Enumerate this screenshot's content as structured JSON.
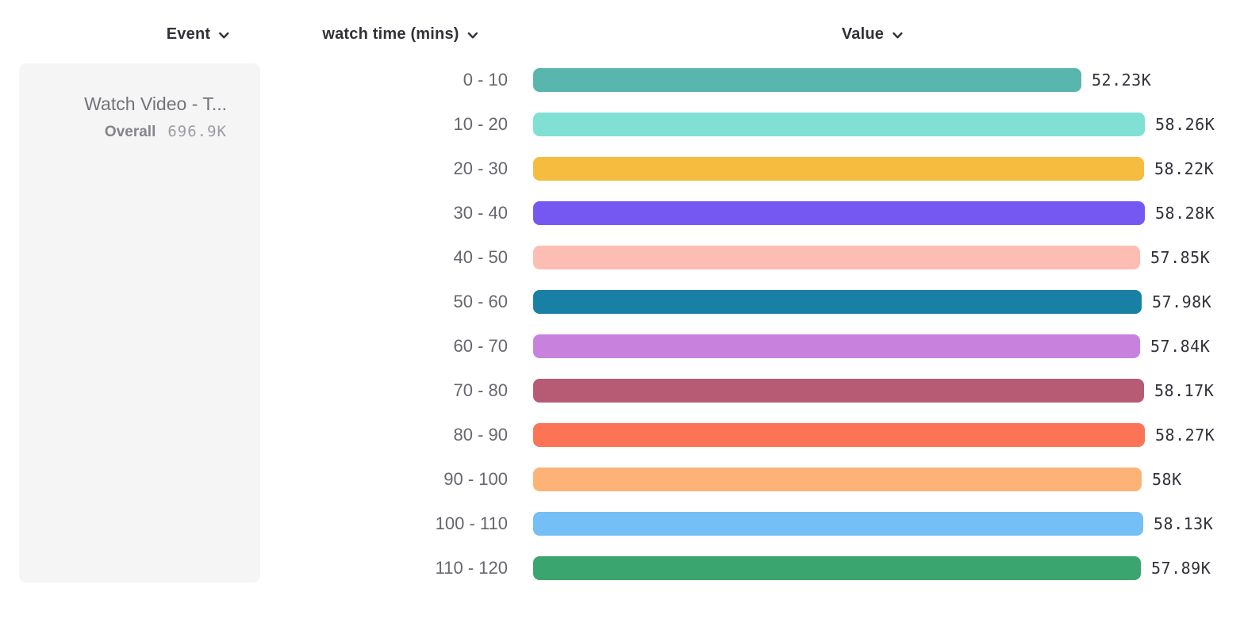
{
  "header": {
    "columns": [
      {
        "id": "event",
        "label": "Event"
      },
      {
        "id": "breakdown",
        "label": "watch time (mins)"
      },
      {
        "id": "value",
        "label": "Value"
      }
    ]
  },
  "event_card": {
    "title": "Watch Video - T...",
    "overall_label": "Overall",
    "overall_value": "696.9K"
  },
  "theme": {
    "background": "#ffffff",
    "card_background": "#f5f5f6",
    "header_text": "#32323c",
    "category_text": "#66666e",
    "value_text": "#32323c",
    "muted_text": "#9c9ca3"
  },
  "chart_data": {
    "type": "bar",
    "orientation": "horizontal",
    "title": "",
    "category_axis_label": "watch time (mins)",
    "value_axis_label": "Value",
    "categories": [
      "0 - 10",
      "10 - 20",
      "20 - 30",
      "30 - 40",
      "40 - 50",
      "50 - 60",
      "60 - 70",
      "70 - 80",
      "80 - 90",
      "90 - 100",
      "100 - 110",
      "110 - 120"
    ],
    "values_k": [
      52.23,
      58.26,
      58.22,
      58.28,
      57.85,
      57.98,
      57.84,
      58.17,
      58.27,
      58.0,
      58.13,
      57.89
    ],
    "value_labels": [
      "52.23K",
      "58.26K",
      "58.22K",
      "58.28K",
      "57.85K",
      "57.98K",
      "57.84K",
      "58.17K",
      "58.27K",
      "58K",
      "58.13K",
      "57.89K"
    ],
    "colors": [
      "#59b6ae",
      "#80e0d4",
      "#f5bc40",
      "#7558f2",
      "#fdbdb3",
      "#1780a4",
      "#c882de",
      "#b75a74",
      "#fc7356",
      "#fdb377",
      "#74bff5",
      "#3ba56f"
    ],
    "xlim_k": [
      0,
      58.28
    ],
    "grid": false,
    "legend": "event card at left"
  }
}
